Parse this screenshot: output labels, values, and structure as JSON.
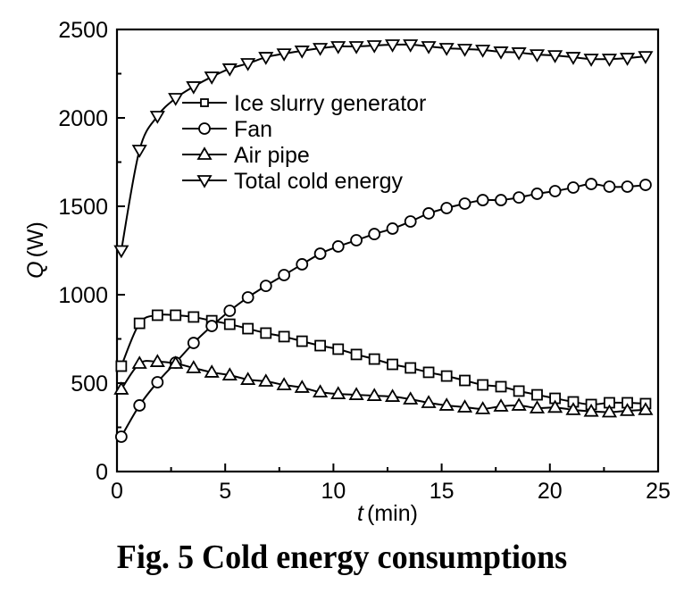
{
  "chart_data": {
    "type": "line",
    "title": "",
    "caption": "Fig. 5  Cold energy consumptions",
    "xlabel_italic": "t",
    "xlabel_unit": "(min)",
    "ylabel_italic": "Q",
    "ylabel_unit": "(W)",
    "xlim": [
      0,
      25
    ],
    "ylim": [
      0,
      2500
    ],
    "xticks": [
      0,
      5,
      10,
      15,
      20,
      25
    ],
    "xtick_labels": [
      "0",
      "5",
      "10",
      "15",
      "20",
      "25"
    ],
    "xminor": [
      2.5,
      7.5,
      12.5,
      17.5,
      22.5
    ],
    "yticks": [
      0,
      500,
      1000,
      1500,
      2000,
      2500
    ],
    "ytick_labels": [
      "0",
      "500",
      "1000",
      "1500",
      "2000",
      "2500"
    ],
    "yminor": [
      250,
      750,
      1250,
      1750,
      2250
    ],
    "grid": false,
    "legend_position": "upper-left-inside",
    "x": [
      0.2,
      1.04,
      1.87,
      2.71,
      3.54,
      4.38,
      5.21,
      6.05,
      6.88,
      7.72,
      8.55,
      9.39,
      10.22,
      11.06,
      11.89,
      12.73,
      13.56,
      14.4,
      15.23,
      16.07,
      16.9,
      17.74,
      18.57,
      19.41,
      20.24,
      21.08,
      21.91,
      22.75,
      23.58,
      24.42
    ],
    "series": [
      {
        "name": "Ice slurry generator",
        "marker": "square",
        "values": [
          596,
          838,
          884,
          884,
          874,
          853,
          833,
          808,
          783,
          763,
          737,
          712,
          692,
          662,
          636,
          606,
          586,
          561,
          540,
          515,
          490,
          480,
          455,
          434,
          414,
          394,
          379,
          389,
          389,
          384
        ]
      },
      {
        "name": "Fan",
        "marker": "circle",
        "values": [
          197,
          374,
          505,
          616,
          727,
          823,
          909,
          985,
          1050,
          1111,
          1172,
          1232,
          1273,
          1308,
          1343,
          1374,
          1414,
          1460,
          1490,
          1515,
          1535,
          1535,
          1550,
          1571,
          1586,
          1606,
          1626,
          1611,
          1611,
          1621
        ]
      },
      {
        "name": "Air pipe",
        "marker": "triangle-up",
        "values": [
          465,
          611,
          621,
          611,
          586,
          561,
          545,
          520,
          510,
          490,
          475,
          449,
          439,
          434,
          429,
          424,
          409,
          389,
          374,
          364,
          354,
          369,
          374,
          359,
          362,
          349,
          340,
          336,
          344,
          349
        ]
      },
      {
        "name": "Total cold energy",
        "marker": "triangle-down",
        "values": [
          1250,
          1818,
          2010,
          2111,
          2177,
          2232,
          2278,
          2308,
          2343,
          2363,
          2379,
          2394,
          2404,
          2404,
          2409,
          2414,
          2414,
          2404,
          2394,
          2389,
          2384,
          2374,
          2369,
          2358,
          2353,
          2343,
          2333,
          2333,
          2338,
          2348
        ]
      }
    ]
  }
}
